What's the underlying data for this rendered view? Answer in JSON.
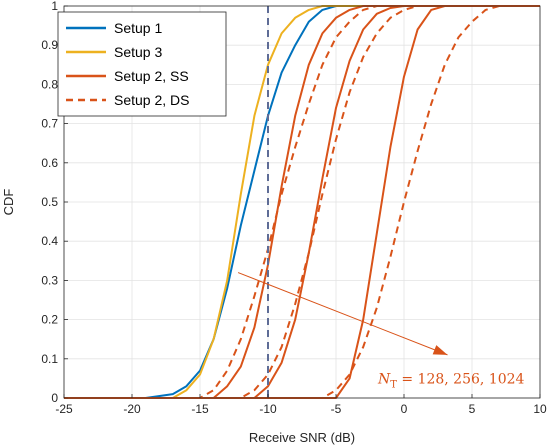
{
  "chart_data": {
    "type": "line",
    "title": "",
    "xlabel": "Receive SNR (dB)",
    "ylabel": "CDF",
    "xlim": [
      -25,
      10
    ],
    "ylim": [
      0,
      1
    ],
    "xticks": [
      -25,
      -20,
      -15,
      -10,
      -5,
      0,
      5,
      10
    ],
    "yticks": [
      0,
      0.1,
      0.2,
      0.3,
      0.4,
      0.5,
      0.6,
      0.7,
      0.8,
      0.9,
      1
    ],
    "grid": true,
    "legend_position": "top-left",
    "colors": {
      "blue": "#0072BD",
      "yellow": "#EDB120",
      "orange": "#D95319",
      "threshold": "#5E6C96"
    },
    "legend": [
      {
        "label": "Setup 1",
        "color": "#0072BD",
        "dash": "solid"
      },
      {
        "label": "Setup 3",
        "color": "#EDB120",
        "dash": "solid"
      },
      {
        "label": "Setup 2, SS",
        "color": "#D95319",
        "dash": "solid"
      },
      {
        "label": "Setup 2, DS",
        "color": "#D95319",
        "dash": "dashed"
      }
    ],
    "series": [
      {
        "name": "Setup 1",
        "color": "#0072BD",
        "dash": "solid",
        "x": [
          -19,
          -17,
          -16,
          -15,
          -14,
          -13,
          -12,
          -11,
          -10,
          -9,
          -8,
          -7,
          -6,
          -5
        ],
        "y": [
          0,
          0.01,
          0.03,
          0.07,
          0.15,
          0.28,
          0.44,
          0.58,
          0.72,
          0.83,
          0.9,
          0.96,
          0.99,
          1
        ]
      },
      {
        "name": "Setup 3",
        "color": "#EDB120",
        "dash": "solid",
        "x": [
          -17,
          -16,
          -15,
          -14,
          -13,
          -12,
          -11,
          -10,
          -9,
          -8,
          -7,
          -6
        ],
        "y": [
          0,
          0.02,
          0.06,
          0.15,
          0.3,
          0.52,
          0.72,
          0.85,
          0.93,
          0.97,
          0.99,
          1
        ]
      },
      {
        "name": "Setup 2, SS (N=128)",
        "color": "#D95319",
        "dash": "solid",
        "x": [
          -14,
          -13,
          -12,
          -11,
          -10,
          -9,
          -8,
          -7,
          -6,
          -5,
          -4,
          -3
        ],
        "y": [
          0,
          0.03,
          0.08,
          0.18,
          0.34,
          0.54,
          0.72,
          0.85,
          0.93,
          0.97,
          0.99,
          1
        ]
      },
      {
        "name": "Setup 2, DS (N=128)",
        "color": "#D95319",
        "dash": "dashed",
        "x": [
          -15,
          -14,
          -13,
          -12,
          -11,
          -10,
          -9,
          -8,
          -7,
          -6,
          -5,
          -4,
          -3,
          -2
        ],
        "y": [
          0,
          0.02,
          0.07,
          0.15,
          0.26,
          0.38,
          0.52,
          0.64,
          0.75,
          0.85,
          0.92,
          0.96,
          0.99,
          1
        ]
      },
      {
        "name": "Setup 2, SS (N=256)",
        "color": "#D95319",
        "dash": "solid",
        "x": [
          -11,
          -10,
          -9,
          -8,
          -7,
          -6,
          -5,
          -4,
          -3,
          -2,
          -1,
          0
        ],
        "y": [
          0,
          0.03,
          0.09,
          0.2,
          0.37,
          0.56,
          0.74,
          0.86,
          0.94,
          0.98,
          0.995,
          1
        ]
      },
      {
        "name": "Setup 2, DS (N=256)",
        "color": "#D95319",
        "dash": "dashed",
        "x": [
          -12,
          -11,
          -10,
          -9,
          -8,
          -7,
          -6,
          -5,
          -4,
          -3,
          -2,
          -1,
          0,
          1
        ],
        "y": [
          0,
          0.02,
          0.06,
          0.13,
          0.24,
          0.37,
          0.52,
          0.66,
          0.78,
          0.87,
          0.93,
          0.97,
          0.99,
          1
        ]
      },
      {
        "name": "Setup 2, SS (N=1024)",
        "color": "#D95319",
        "dash": "solid",
        "x": [
          -5,
          -4,
          -3,
          -2,
          -1,
          0,
          1,
          2,
          3
        ],
        "y": [
          0,
          0.05,
          0.2,
          0.42,
          0.64,
          0.82,
          0.94,
          0.99,
          1
        ]
      },
      {
        "name": "Setup 2, DS (N=1024)",
        "color": "#D95319",
        "dash": "dashed",
        "x": [
          -6,
          -5,
          -4,
          -3,
          -2,
          -1,
          0,
          1,
          2,
          3,
          4,
          5,
          6,
          7
        ],
        "y": [
          0,
          0.02,
          0.06,
          0.13,
          0.23,
          0.36,
          0.5,
          0.63,
          0.75,
          0.85,
          0.92,
          0.96,
          0.99,
          1
        ]
      }
    ],
    "threshold_x": -10,
    "annotation": {
      "text_main": "N",
      "text_sub": "T",
      "text_rest": " = 128, 256, 1024",
      "color": "#D95319",
      "arrow_from": [
        -12.2,
        0.32
      ],
      "arrow_to": [
        3.2,
        0.11
      ],
      "text_at": [
        0,
        0.05
      ]
    }
  }
}
